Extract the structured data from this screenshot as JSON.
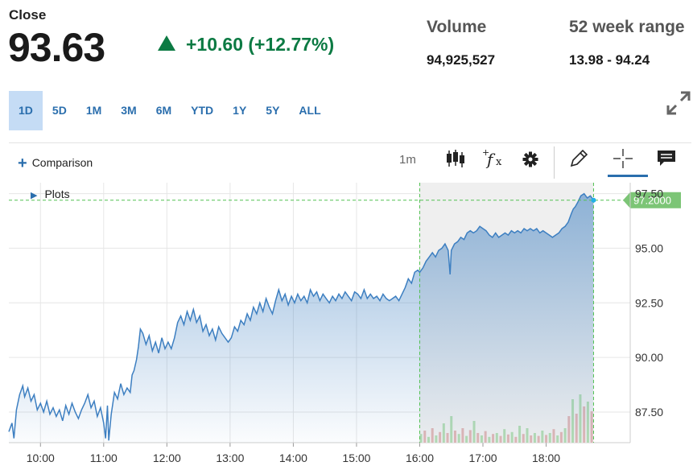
{
  "header": {
    "close_label": "Close",
    "close_price": "93.63",
    "change": "+10.60 (+12.77%)",
    "volume_label": "Volume",
    "volume_value": "94,925,527",
    "range_label": "52 week range",
    "range_value": "13.98 - 94.24"
  },
  "periods": [
    "1D",
    "5D",
    "1M",
    "3M",
    "6M",
    "YTD",
    "1Y",
    "5Y",
    "ALL"
  ],
  "active_period": "1D",
  "toolbar": {
    "comparison_label": "Comparison",
    "interval_label": "1m",
    "icons": [
      "candlestick-icon",
      "indicator-fx-icon",
      "gear-icon",
      "pencil-icon",
      "crosshair-icon",
      "comment-icon",
      "expand-icon"
    ]
  },
  "plots_label": "Plots",
  "colors": {
    "accent": "#2a6ead",
    "up": "#0c7a43",
    "line": "#3d7fc1",
    "price_tag": "#7cc576",
    "extended_hours_bg": "#efefef"
  },
  "chart_data": {
    "type": "area",
    "x_tick_labels": [
      "10:00",
      "11:00",
      "12:00",
      "13:00",
      "14:00",
      "15:00",
      "16:00",
      "17:00",
      "18:00"
    ],
    "y_tick_labels": [
      "87.50",
      "90.00",
      "92.50",
      "95.00",
      "97.50"
    ],
    "ylim": [
      86.1,
      98.0
    ],
    "xlim_hours": [
      9.5,
      19.33
    ],
    "last_price_label": "97.2000",
    "last_price": 97.2,
    "extended_hours_start": "16:00",
    "grid": true,
    "price_series": [
      [
        9.5,
        86.6
      ],
      [
        9.55,
        87.0
      ],
      [
        9.58,
        86.3
      ],
      [
        9.62,
        87.6
      ],
      [
        9.67,
        88.3
      ],
      [
        9.72,
        88.7
      ],
      [
        9.75,
        88.2
      ],
      [
        9.8,
        88.6
      ],
      [
        9.85,
        88.0
      ],
      [
        9.9,
        88.3
      ],
      [
        9.95,
        87.6
      ],
      [
        10.0,
        87.9
      ],
      [
        10.05,
        87.5
      ],
      [
        10.1,
        88.0
      ],
      [
        10.15,
        87.4
      ],
      [
        10.2,
        87.7
      ],
      [
        10.25,
        87.3
      ],
      [
        10.3,
        87.6
      ],
      [
        10.35,
        87.1
      ],
      [
        10.4,
        87.8
      ],
      [
        10.45,
        87.4
      ],
      [
        10.5,
        87.9
      ],
      [
        10.55,
        87.5
      ],
      [
        10.6,
        87.2
      ],
      [
        10.65,
        87.6
      ],
      [
        10.7,
        87.9
      ],
      [
        10.75,
        88.3
      ],
      [
        10.8,
        87.7
      ],
      [
        10.85,
        88.0
      ],
      [
        10.9,
        87.3
      ],
      [
        10.95,
        87.7
      ],
      [
        11.0,
        87.0
      ],
      [
        11.03,
        86.3
      ],
      [
        11.06,
        87.8
      ],
      [
        11.08,
        86.2
      ],
      [
        11.12,
        87.4
      ],
      [
        11.17,
        88.4
      ],
      [
        11.22,
        88.1
      ],
      [
        11.27,
        88.8
      ],
      [
        11.32,
        88.3
      ],
      [
        11.37,
        88.6
      ],
      [
        11.42,
        88.4
      ],
      [
        11.45,
        89.2
      ],
      [
        11.48,
        89.4
      ],
      [
        11.52,
        89.9
      ],
      [
        11.55,
        90.5
      ],
      [
        11.58,
        91.3
      ],
      [
        11.62,
        91.1
      ],
      [
        11.67,
        90.6
      ],
      [
        11.72,
        91.0
      ],
      [
        11.77,
        90.3
      ],
      [
        11.82,
        90.7
      ],
      [
        11.87,
        90.2
      ],
      [
        11.92,
        90.9
      ],
      [
        11.97,
        90.4
      ],
      [
        12.02,
        90.7
      ],
      [
        12.07,
        90.4
      ],
      [
        12.12,
        90.9
      ],
      [
        12.17,
        91.6
      ],
      [
        12.22,
        91.9
      ],
      [
        12.27,
        91.5
      ],
      [
        12.32,
        92.1
      ],
      [
        12.37,
        91.7
      ],
      [
        12.42,
        92.2
      ],
      [
        12.47,
        91.6
      ],
      [
        12.52,
        91.9
      ],
      [
        12.57,
        91.2
      ],
      [
        12.62,
        91.5
      ],
      [
        12.67,
        91.0
      ],
      [
        12.72,
        91.3
      ],
      [
        12.77,
        90.8
      ],
      [
        12.82,
        91.4
      ],
      [
        12.87,
        91.1
      ],
      [
        12.92,
        90.9
      ],
      [
        12.97,
        90.7
      ],
      [
        13.02,
        90.9
      ],
      [
        13.07,
        91.4
      ],
      [
        13.12,
        91.2
      ],
      [
        13.17,
        91.7
      ],
      [
        13.22,
        91.5
      ],
      [
        13.27,
        92.0
      ],
      [
        13.32,
        91.7
      ],
      [
        13.37,
        92.3
      ],
      [
        13.42,
        92.0
      ],
      [
        13.47,
        92.5
      ],
      [
        13.52,
        92.1
      ],
      [
        13.57,
        92.7
      ],
      [
        13.62,
        92.3
      ],
      [
        13.67,
        92.0
      ],
      [
        13.72,
        92.6
      ],
      [
        13.77,
        93.1
      ],
      [
        13.82,
        92.6
      ],
      [
        13.87,
        92.9
      ],
      [
        13.92,
        92.4
      ],
      [
        13.97,
        92.8
      ],
      [
        14.02,
        92.5
      ],
      [
        14.07,
        92.9
      ],
      [
        14.12,
        92.6
      ],
      [
        14.17,
        92.8
      ],
      [
        14.22,
        92.5
      ],
      [
        14.27,
        93.1
      ],
      [
        14.32,
        92.8
      ],
      [
        14.37,
        93.0
      ],
      [
        14.42,
        92.6
      ],
      [
        14.47,
        92.9
      ],
      [
        14.52,
        92.7
      ],
      [
        14.57,
        92.5
      ],
      [
        14.62,
        92.8
      ],
      [
        14.67,
        92.6
      ],
      [
        14.72,
        92.9
      ],
      [
        14.77,
        92.7
      ],
      [
        14.82,
        93.0
      ],
      [
        14.87,
        92.8
      ],
      [
        14.92,
        92.6
      ],
      [
        14.97,
        93.0
      ],
      [
        15.02,
        92.9
      ],
      [
        15.07,
        92.7
      ],
      [
        15.12,
        93.1
      ],
      [
        15.17,
        92.7
      ],
      [
        15.22,
        92.9
      ],
      [
        15.27,
        92.7
      ],
      [
        15.32,
        92.8
      ],
      [
        15.37,
        92.6
      ],
      [
        15.42,
        92.9
      ],
      [
        15.47,
        92.7
      ],
      [
        15.52,
        92.6
      ],
      [
        15.57,
        92.7
      ],
      [
        15.62,
        92.8
      ],
      [
        15.67,
        92.6
      ],
      [
        15.72,
        92.9
      ],
      [
        15.77,
        93.2
      ],
      [
        15.82,
        93.6
      ],
      [
        15.87,
        93.4
      ],
      [
        15.92,
        93.9
      ],
      [
        15.97,
        94.0
      ],
      [
        16.0,
        93.9
      ],
      [
        16.05,
        94.1
      ],
      [
        16.1,
        94.4
      ],
      [
        16.15,
        94.6
      ],
      [
        16.2,
        94.8
      ],
      [
        16.25,
        94.6
      ],
      [
        16.3,
        94.9
      ],
      [
        16.35,
        95.0
      ],
      [
        16.4,
        95.2
      ],
      [
        16.45,
        94.9
      ],
      [
        16.48,
        93.8
      ],
      [
        16.5,
        94.9
      ],
      [
        16.55,
        95.2
      ],
      [
        16.6,
        95.3
      ],
      [
        16.65,
        95.5
      ],
      [
        16.7,
        95.4
      ],
      [
        16.75,
        95.7
      ],
      [
        16.8,
        95.8
      ],
      [
        16.85,
        95.7
      ],
      [
        16.9,
        95.8
      ],
      [
        16.95,
        96.0
      ],
      [
        17.0,
        95.9
      ],
      [
        17.05,
        95.8
      ],
      [
        17.1,
        95.6
      ],
      [
        17.15,
        95.5
      ],
      [
        17.2,
        95.7
      ],
      [
        17.25,
        95.5
      ],
      [
        17.3,
        95.6
      ],
      [
        17.35,
        95.7
      ],
      [
        17.4,
        95.6
      ],
      [
        17.45,
        95.8
      ],
      [
        17.5,
        95.7
      ],
      [
        17.55,
        95.8
      ],
      [
        17.6,
        95.7
      ],
      [
        17.65,
        95.9
      ],
      [
        17.7,
        95.8
      ],
      [
        17.75,
        95.9
      ],
      [
        17.8,
        95.8
      ],
      [
        17.85,
        95.9
      ],
      [
        17.9,
        95.7
      ],
      [
        17.95,
        95.8
      ],
      [
        18.0,
        95.7
      ],
      [
        18.05,
        95.6
      ],
      [
        18.1,
        95.5
      ],
      [
        18.15,
        95.6
      ],
      [
        18.2,
        95.7
      ],
      [
        18.25,
        95.9
      ],
      [
        18.3,
        96.0
      ],
      [
        18.35,
        96.2
      ],
      [
        18.4,
        96.6
      ],
      [
        18.43,
        96.8
      ],
      [
        18.46,
        96.9
      ],
      [
        18.5,
        97.1
      ],
      [
        18.55,
        97.4
      ],
      [
        18.6,
        97.5
      ],
      [
        18.65,
        97.3
      ],
      [
        18.7,
        97.4
      ],
      [
        18.75,
        97.2
      ]
    ],
    "volume_bars_extended": [
      [
        16.02,
        0.18
      ],
      [
        16.08,
        0.25
      ],
      [
        16.14,
        0.12
      ],
      [
        16.2,
        0.3
      ],
      [
        16.26,
        0.15
      ],
      [
        16.32,
        0.22
      ],
      [
        16.38,
        0.4
      ],
      [
        16.44,
        0.2
      ],
      [
        16.5,
        0.55
      ],
      [
        16.56,
        0.25
      ],
      [
        16.62,
        0.18
      ],
      [
        16.68,
        0.3
      ],
      [
        16.74,
        0.14
      ],
      [
        16.8,
        0.26
      ],
      [
        16.86,
        0.45
      ],
      [
        16.92,
        0.2
      ],
      [
        16.98,
        0.15
      ],
      [
        17.04,
        0.24
      ],
      [
        17.1,
        0.12
      ],
      [
        17.16,
        0.18
      ],
      [
        17.22,
        0.2
      ],
      [
        17.28,
        0.14
      ],
      [
        17.34,
        0.28
      ],
      [
        17.4,
        0.17
      ],
      [
        17.46,
        0.22
      ],
      [
        17.52,
        0.12
      ],
      [
        17.58,
        0.35
      ],
      [
        17.64,
        0.18
      ],
      [
        17.7,
        0.3
      ],
      [
        17.76,
        0.15
      ],
      [
        17.82,
        0.2
      ],
      [
        17.88,
        0.14
      ],
      [
        17.94,
        0.25
      ],
      [
        18.0,
        0.16
      ],
      [
        18.06,
        0.2
      ],
      [
        18.12,
        0.28
      ],
      [
        18.18,
        0.15
      ],
      [
        18.24,
        0.22
      ],
      [
        18.3,
        0.3
      ],
      [
        18.36,
        0.55
      ],
      [
        18.42,
        0.9
      ],
      [
        18.48,
        0.6
      ],
      [
        18.54,
        1.0
      ],
      [
        18.6,
        0.75
      ],
      [
        18.66,
        0.85
      ],
      [
        18.72,
        0.65
      ]
    ]
  }
}
